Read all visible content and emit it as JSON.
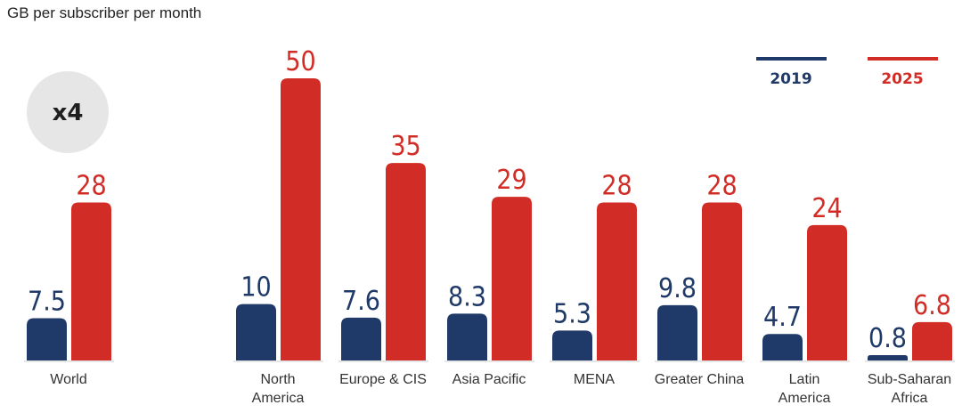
{
  "chart_data": {
    "type": "bar",
    "ylabel": "GB per subscriber per month",
    "badge": "x4",
    "categories": [
      "World",
      "North America",
      "Europe & CIS",
      "Asia Pacific",
      "MENA",
      "Greater China",
      "Latin America",
      "Sub-Saharan Africa"
    ],
    "category_lines": [
      [
        "World"
      ],
      [
        "North",
        "America"
      ],
      [
        "Europe & CIS"
      ],
      [
        "Asia Pacific"
      ],
      [
        "MENA"
      ],
      [
        "Greater China"
      ],
      [
        "Latin",
        "America"
      ],
      [
        "Sub-Saharan",
        "Africa"
      ]
    ],
    "series": [
      {
        "name": "2019",
        "color": "#1f3a68",
        "values": [
          7.5,
          10,
          7.6,
          8.3,
          5.3,
          9.8,
          4.7,
          0.8
        ],
        "labels": [
          "7.5",
          "10",
          "7.6",
          "8.3",
          "5.3",
          "9.8",
          "4.7",
          "0.8"
        ]
      },
      {
        "name": "2025",
        "color": "#d22c26",
        "values": [
          28,
          50,
          35,
          29,
          28,
          28,
          24,
          6.8
        ],
        "labels": [
          "28",
          "50",
          "35",
          "29",
          "28",
          "28",
          "24",
          "6.8"
        ]
      }
    ],
    "ylim": [
      0,
      50
    ],
    "grid": false,
    "legend_position": "top-right"
  }
}
